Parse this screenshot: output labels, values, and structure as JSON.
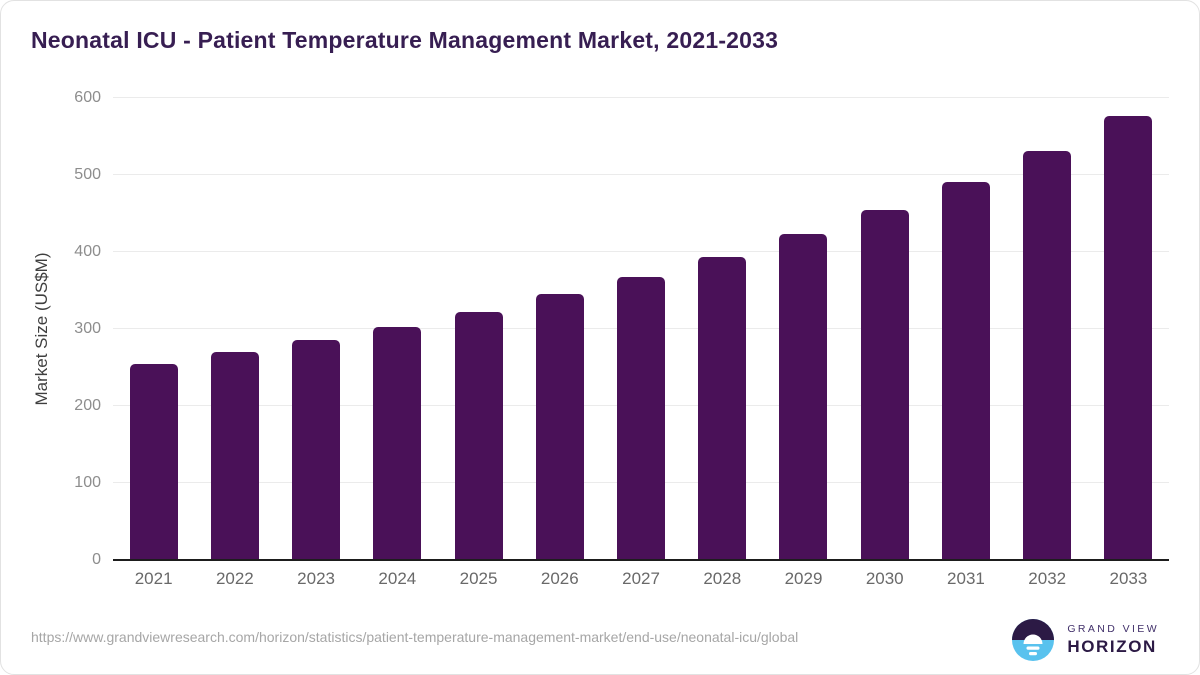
{
  "title": "Neonatal ICU - Patient Temperature Management Market, 2021-2033",
  "chart_data": {
    "type": "bar",
    "title": "Neonatal ICU - Patient Temperature Management Market, 2021-2033",
    "categories": [
      "2021",
      "2022",
      "2023",
      "2024",
      "2025",
      "2026",
      "2027",
      "2028",
      "2029",
      "2030",
      "2031",
      "2032",
      "2033"
    ],
    "values": [
      255,
      270,
      286,
      303,
      322,
      345,
      368,
      394,
      423,
      455,
      491,
      531,
      577
    ],
    "xlabel": "",
    "ylabel": "Market Size (US$M)",
    "ylim": [
      0,
      600
    ],
    "yticks": [
      0,
      100,
      200,
      300,
      400,
      500,
      600
    ],
    "grid": true,
    "legend_position": "none",
    "bar_color": "#4a1158"
  },
  "colors": {
    "title": "#371e52",
    "bar": "#4a1158",
    "gridline": "#ebebeb",
    "axis_line": "#1d1d1d",
    "y_tick": "#8d8d8d",
    "x_tick": "#696969",
    "url_text": "#a6a6a6",
    "logo_purple": "#2c1a45",
    "logo_blue": "#59c2ee"
  },
  "footer": {
    "source_url": "https://www.grandviewresearch.com/horizon/statistics/patient-temperature-management-market/end-use/neonatal-icu/global",
    "logo": {
      "line1": "GRAND VIEW",
      "line2": "HORIZON"
    }
  }
}
